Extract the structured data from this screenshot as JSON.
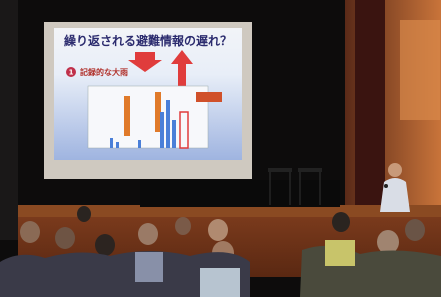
{
  "slide": {
    "title": "繰り返される避難情報の遅れ？",
    "badge": "1",
    "subtitle": "記録的な大雨"
  }
}
